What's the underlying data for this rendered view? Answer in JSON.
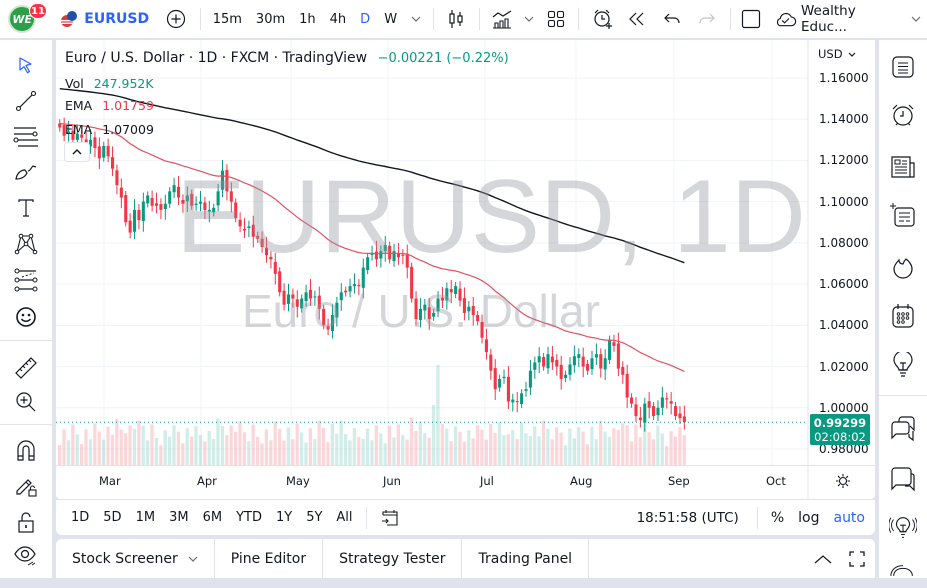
{
  "topbar": {
    "avatar_initials": "WE",
    "notification_count": "11",
    "symbol": "EURUSD",
    "intervals": [
      "15m",
      "30m",
      "1h",
      "4h",
      "D",
      "W"
    ],
    "active_interval": "D",
    "account_name": "Wealthy Educ..."
  },
  "chart": {
    "title": "Euro / U.S. Dollar · 1D · FXCM · TradingView",
    "change": "−0.00221 (−0.22%)",
    "vol_label": "Vol",
    "vol_value": "247.952K",
    "ema1_label": "EMA",
    "ema1_value": "1.01759",
    "ema2_label": "EMA",
    "ema2_value": "1.07009",
    "watermark_main": "EURUSD, 1D",
    "watermark_sub": "Euro / U.S. Dollar",
    "currency": "USD",
    "price_ticks": [
      "1.16000",
      "1.14000",
      "1.12000",
      "1.10000",
      "1.08000",
      "1.06000",
      "1.04000",
      "1.02000",
      "1.00000",
      "0.98000"
    ],
    "current_price": "0.99299",
    "countdown": "02:08:02",
    "time_ticks": [
      "Mar",
      "Apr",
      "May",
      "Jun",
      "Jul",
      "Aug",
      "Sep",
      "Oct"
    ],
    "colors": {
      "up": "#089981",
      "down": "#f23645",
      "ema_fast": "#e0525f",
      "ema_slow": "#131722",
      "accent": "#2962ff"
    }
  },
  "range_bar": {
    "ranges": [
      "1D",
      "5D",
      "1M",
      "3M",
      "6M",
      "YTD",
      "1Y",
      "5Y",
      "All"
    ],
    "clock": "18:51:58 (UTC)",
    "percent": "%",
    "log": "log",
    "auto": "auto"
  },
  "bottom_bar": {
    "tabs": [
      "Stock Screener",
      "Pine Editor",
      "Strategy Tester",
      "Trading Panel"
    ]
  },
  "chart_data": {
    "type": "candlestick",
    "title": "Euro / U.S. Dollar · 1D · FXCM",
    "ylim": [
      0.975,
      1.165
    ],
    "yticks": [
      1.16,
      1.14,
      1.12,
      1.1,
      1.08,
      1.06,
      1.04,
      1.02,
      1.0,
      0.98
    ],
    "xticks": [
      "Mar",
      "Apr",
      "May",
      "Jun",
      "Jul",
      "Aug",
      "Sep",
      "Oct"
    ],
    "closes": [
      1.136,
      1.132,
      1.134,
      1.13,
      1.133,
      1.131,
      1.128,
      1.13,
      1.126,
      1.121,
      1.127,
      1.122,
      1.116,
      1.108,
      1.102,
      1.09,
      1.085,
      1.096,
      1.091,
      1.1,
      1.103,
      1.098,
      1.098,
      1.096,
      1.099,
      1.105,
      1.108,
      1.102,
      1.099,
      1.103,
      1.098,
      1.099,
      1.1,
      1.096,
      1.096,
      1.097,
      1.105,
      1.115,
      1.105,
      1.1,
      1.092,
      1.088,
      1.086,
      1.088,
      1.083,
      1.082,
      1.078,
      1.074,
      1.072,
      1.065,
      1.056,
      1.05,
      1.055,
      1.053,
      1.049,
      1.053,
      1.056,
      1.053,
      1.054,
      1.048,
      1.04,
      1.038,
      1.045,
      1.051,
      1.056,
      1.056,
      1.059,
      1.06,
      1.059,
      1.068,
      1.073,
      1.075,
      1.072,
      1.076,
      1.079,
      1.072,
      1.076,
      1.073,
      1.074,
      1.068,
      1.053,
      1.043,
      1.048,
      1.05,
      1.043,
      1.046,
      1.053,
      1.052,
      1.058,
      1.056,
      1.059,
      1.052,
      1.046,
      1.049,
      1.045,
      1.042,
      1.034,
      1.027,
      1.018,
      1.009,
      1.014,
      1.015,
      1.003,
      1.004,
      1.003,
      1.007,
      1.009,
      1.018,
      1.022,
      1.025,
      1.02,
      1.026,
      1.022,
      1.02,
      1.014,
      1.016,
      1.021,
      1.025,
      1.026,
      1.02,
      1.018,
      1.024,
      1.026,
      1.019,
      1.024,
      1.033,
      1.03,
      1.019,
      1.016,
      1.005,
      1.002,
      0.996,
      0.994,
      1.002,
      1.0,
      0.996,
      1.0,
      1.005,
      1.004,
      1.002,
      0.996,
      0.995,
      0.993
    ],
    "ema_fast_label": "EMA 1.01759",
    "ema_slow_label": "EMA 1.07009",
    "last_price": 0.99299
  }
}
